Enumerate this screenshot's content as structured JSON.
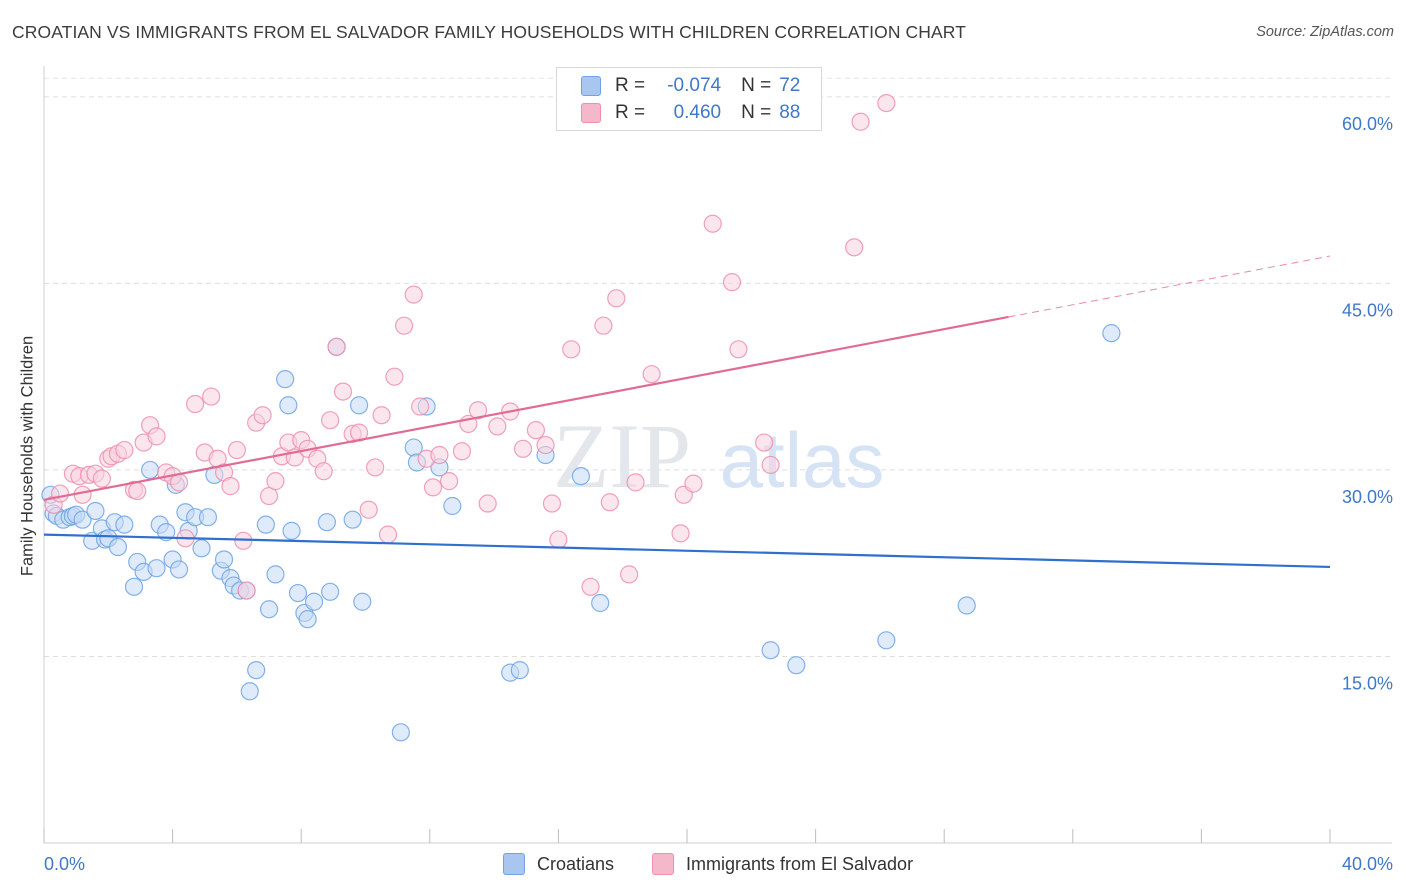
{
  "title": "CROATIAN VS IMMIGRANTS FROM EL SALVADOR FAMILY HOUSEHOLDS WITH CHILDREN CORRELATION CHART",
  "source": "Source: ZipAtlas.com",
  "watermark": {
    "zip": "ZIP",
    "atlas": "atlas"
  },
  "legend_top": {
    "rows": [
      {
        "r_label": "R =",
        "r_value": "-0.074",
        "n_label": "N =",
        "n_value": "72",
        "color": "#a9c6f0"
      },
      {
        "r_label": "R =",
        "r_value": "0.460",
        "n_label": "N =",
        "n_value": "88",
        "color": "#f5b8cb"
      }
    ]
  },
  "legend_bottom": [
    {
      "label": "Croatians",
      "color": "#a9c6f0"
    },
    {
      "label": "Immigrants from El Salvador",
      "color": "#f5b8cb"
    }
  ],
  "chart_data": {
    "type": "scatter",
    "title": "CROATIAN VS IMMIGRANTS FROM EL SALVADOR FAMILY HOUSEHOLDS WITH CHILDREN CORRELATION CHART",
    "xlabel": "",
    "ylabel": "Family Households with Children",
    "xlim": [
      0,
      40
    ],
    "ylim": [
      0,
      62
    ],
    "x_tick_labels": [
      "0.0%",
      "40.0%"
    ],
    "y_ticks": [
      15,
      30,
      45,
      60
    ],
    "y_tick_labels": [
      "15.0%",
      "30.0%",
      "45.0%",
      "60.0%"
    ],
    "grid": true,
    "series": [
      {
        "name": "Croatians",
        "color": "#6fa3e8",
        "fill": "#c5daf6",
        "line_color": "#2f6fcd",
        "trend": {
          "x0": 0,
          "y0": 24.8,
          "x1": 40,
          "y1": 22.2,
          "dash_from": null
        },
        "points": [
          [
            0.2,
            28.0
          ],
          [
            0.3,
            26.5
          ],
          [
            0.4,
            26.3
          ],
          [
            0.6,
            26.0
          ],
          [
            0.8,
            26.2
          ],
          [
            0.9,
            26.3
          ],
          [
            1.0,
            26.4
          ],
          [
            1.2,
            26.0
          ],
          [
            1.5,
            24.3
          ],
          [
            1.6,
            26.7
          ],
          [
            1.8,
            25.3
          ],
          [
            1.9,
            24.4
          ],
          [
            2.0,
            24.5
          ],
          [
            2.2,
            25.8
          ],
          [
            2.3,
            23.8
          ],
          [
            2.5,
            25.6
          ],
          [
            2.8,
            20.6
          ],
          [
            2.9,
            22.6
          ],
          [
            3.1,
            21.8
          ],
          [
            3.3,
            30.0
          ],
          [
            3.5,
            22.1
          ],
          [
            3.6,
            25.6
          ],
          [
            3.8,
            25.0
          ],
          [
            4.0,
            22.8
          ],
          [
            4.1,
            28.8
          ],
          [
            4.2,
            22.0
          ],
          [
            4.4,
            26.6
          ],
          [
            4.5,
            25.1
          ],
          [
            4.7,
            26.2
          ],
          [
            4.9,
            23.7
          ],
          [
            5.1,
            26.2
          ],
          [
            5.3,
            29.6
          ],
          [
            5.5,
            21.9
          ],
          [
            5.6,
            22.8
          ],
          [
            5.8,
            21.3
          ],
          [
            5.9,
            20.7
          ],
          [
            6.1,
            20.3
          ],
          [
            6.3,
            20.3
          ],
          [
            6.4,
            12.2
          ],
          [
            6.6,
            13.9
          ],
          [
            6.9,
            25.6
          ],
          [
            7.0,
            18.8
          ],
          [
            7.2,
            21.6
          ],
          [
            7.5,
            37.3
          ],
          [
            7.6,
            35.2
          ],
          [
            7.7,
            25.1
          ],
          [
            7.9,
            20.1
          ],
          [
            8.1,
            18.5
          ],
          [
            8.2,
            18.0
          ],
          [
            8.4,
            19.4
          ],
          [
            8.8,
            25.8
          ],
          [
            8.9,
            20.2
          ],
          [
            9.1,
            39.9
          ],
          [
            9.6,
            26.0
          ],
          [
            9.8,
            35.2
          ],
          [
            9.9,
            19.4
          ],
          [
            11.1,
            8.9
          ],
          [
            11.5,
            31.8
          ],
          [
            11.6,
            30.6
          ],
          [
            11.9,
            35.1
          ],
          [
            12.3,
            30.2
          ],
          [
            12.7,
            27.1
          ],
          [
            14.5,
            13.7
          ],
          [
            14.8,
            13.9
          ],
          [
            15.6,
            31.2
          ],
          [
            16.7,
            29.5
          ],
          [
            17.3,
            19.3
          ],
          [
            22.6,
            15.5
          ],
          [
            23.4,
            14.3
          ],
          [
            26.2,
            16.3
          ],
          [
            28.7,
            19.1
          ],
          [
            33.2,
            41.0
          ]
        ]
      },
      {
        "name": "Immigrants from El Salvador",
        "color": "#ef8fac",
        "fill": "#f9d2df",
        "line_color": "#e06c95",
        "trend": {
          "x0": 0,
          "y0": 27.6,
          "x1": 40,
          "y1": 47.2,
          "dash_from": 30.0
        },
        "points": [
          [
            0.3,
            27.2
          ],
          [
            0.5,
            28.1
          ],
          [
            0.9,
            29.7
          ],
          [
            1.1,
            29.5
          ],
          [
            1.2,
            28.0
          ],
          [
            1.4,
            29.6
          ],
          [
            1.6,
            29.7
          ],
          [
            1.8,
            29.3
          ],
          [
            2.0,
            30.9
          ],
          [
            2.1,
            31.1
          ],
          [
            2.3,
            31.3
          ],
          [
            2.5,
            31.6
          ],
          [
            2.8,
            28.4
          ],
          [
            2.9,
            28.3
          ],
          [
            3.1,
            32.2
          ],
          [
            3.3,
            33.6
          ],
          [
            3.5,
            32.7
          ],
          [
            3.8,
            29.8
          ],
          [
            4.0,
            29.5
          ],
          [
            4.2,
            29.0
          ],
          [
            4.4,
            24.5
          ],
          [
            4.7,
            35.3
          ],
          [
            5.0,
            31.4
          ],
          [
            5.2,
            35.9
          ],
          [
            5.4,
            30.9
          ],
          [
            5.6,
            29.8
          ],
          [
            5.8,
            28.7
          ],
          [
            6.0,
            31.6
          ],
          [
            6.2,
            24.3
          ],
          [
            6.3,
            20.3
          ],
          [
            6.6,
            33.8
          ],
          [
            6.8,
            34.4
          ],
          [
            7.0,
            27.9
          ],
          [
            7.2,
            29.1
          ],
          [
            7.4,
            31.1
          ],
          [
            7.6,
            32.2
          ],
          [
            7.8,
            31.0
          ],
          [
            8.0,
            32.4
          ],
          [
            8.2,
            31.7
          ],
          [
            8.5,
            30.9
          ],
          [
            8.7,
            29.9
          ],
          [
            8.9,
            34.0
          ],
          [
            9.1,
            39.9
          ],
          [
            9.3,
            36.3
          ],
          [
            9.6,
            32.9
          ],
          [
            9.8,
            33.0
          ],
          [
            10.1,
            26.8
          ],
          [
            10.3,
            30.2
          ],
          [
            10.5,
            34.4
          ],
          [
            10.7,
            24.8
          ],
          [
            10.9,
            37.5
          ],
          [
            11.2,
            41.6
          ],
          [
            11.5,
            44.1
          ],
          [
            11.7,
            35.1
          ],
          [
            11.9,
            30.9
          ],
          [
            12.1,
            28.6
          ],
          [
            12.3,
            31.2
          ],
          [
            12.6,
            29.1
          ],
          [
            13.0,
            31.5
          ],
          [
            13.2,
            33.7
          ],
          [
            13.5,
            34.8
          ],
          [
            13.8,
            27.3
          ],
          [
            14.1,
            33.5
          ],
          [
            14.5,
            34.7
          ],
          [
            14.9,
            31.7
          ],
          [
            15.3,
            33.2
          ],
          [
            15.6,
            32.0
          ],
          [
            15.8,
            27.3
          ],
          [
            16.0,
            24.4
          ],
          [
            16.4,
            39.7
          ],
          [
            17.0,
            20.6
          ],
          [
            17.4,
            41.6
          ],
          [
            17.6,
            27.4
          ],
          [
            17.8,
            43.8
          ],
          [
            18.2,
            21.6
          ],
          [
            18.4,
            29.0
          ],
          [
            18.9,
            37.7
          ],
          [
            19.8,
            24.9
          ],
          [
            19.9,
            28.0
          ],
          [
            20.2,
            28.9
          ],
          [
            20.8,
            49.8
          ],
          [
            21.4,
            45.1
          ],
          [
            21.6,
            39.7
          ],
          [
            22.4,
            32.2
          ],
          [
            22.6,
            30.4
          ],
          [
            25.2,
            47.9
          ],
          [
            26.2,
            59.5
          ],
          [
            25.4,
            58.0
          ]
        ]
      }
    ]
  }
}
